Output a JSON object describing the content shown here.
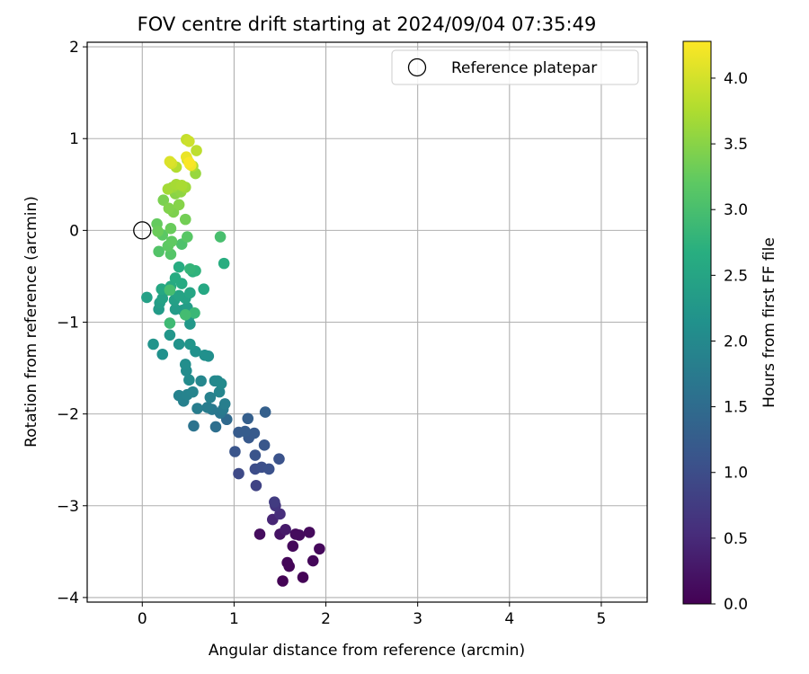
{
  "chart_data": {
    "type": "scatter",
    "title": "FOV centre drift starting at 2024/09/04 07:35:49",
    "xlabel": "Angular distance from reference (arcmin)",
    "ylabel": "Rotation from reference (arcmin)",
    "xlim": [
      -0.6,
      5.5
    ],
    "ylim": [
      -4.05,
      2.05
    ],
    "xticks": [
      0,
      1,
      2,
      3,
      4,
      5
    ],
    "yticks": [
      -4,
      -3,
      -2,
      -1,
      0,
      1,
      2
    ],
    "grid": true,
    "legend": {
      "position": "top-right",
      "entries": [
        "Reference platepar"
      ]
    },
    "reference_point": {
      "x": 0,
      "y": 0,
      "label": "Reference platepar"
    },
    "colorbar": {
      "label": "Hours from first FF file",
      "colormap": "viridis",
      "range": [
        0,
        4.28
      ],
      "ticks": [
        0.0,
        0.5,
        1.0,
        1.5,
        2.0,
        2.5,
        3.0,
        3.5,
        4.0
      ],
      "tick_labels": [
        "0.0",
        "0.5",
        "1.0",
        "1.5",
        "2.0",
        "2.5",
        "3.0",
        "3.5",
        "4.0"
      ]
    },
    "points": [
      {
        "x": 1.53,
        "y": -3.82,
        "c": 0.02
      },
      {
        "x": 1.75,
        "y": -3.78,
        "c": 0.03
      },
      {
        "x": 1.6,
        "y": -3.66,
        "c": 0.05
      },
      {
        "x": 1.58,
        "y": -3.62,
        "c": 0.06
      },
      {
        "x": 1.86,
        "y": -3.6,
        "c": 0.07
      },
      {
        "x": 1.64,
        "y": -3.44,
        "c": 0.08
      },
      {
        "x": 1.93,
        "y": -3.47,
        "c": 0.09
      },
      {
        "x": 1.82,
        "y": -3.29,
        "c": 0.11
      },
      {
        "x": 1.71,
        "y": -3.32,
        "c": 0.12
      },
      {
        "x": 1.67,
        "y": -3.31,
        "c": 0.13
      },
      {
        "x": 1.28,
        "y": -3.31,
        "c": 0.14
      },
      {
        "x": 1.5,
        "y": -3.31,
        "c": 0.22
      },
      {
        "x": 1.56,
        "y": -3.26,
        "c": 0.3
      },
      {
        "x": 1.42,
        "y": -3.15,
        "c": 0.45
      },
      {
        "x": 1.5,
        "y": -3.09,
        "c": 0.55
      },
      {
        "x": 1.45,
        "y": -3.0,
        "c": 0.65
      },
      {
        "x": 1.44,
        "y": -2.96,
        "c": 0.75
      },
      {
        "x": 1.24,
        "y": -2.78,
        "c": 0.85
      },
      {
        "x": 1.05,
        "y": -2.65,
        "c": 0.95
      },
      {
        "x": 1.23,
        "y": -2.6,
        "c": 1.0
      },
      {
        "x": 1.3,
        "y": -2.58,
        "c": 1.03
      },
      {
        "x": 1.38,
        "y": -2.6,
        "c": 1.06
      },
      {
        "x": 1.49,
        "y": -2.49,
        "c": 1.08
      },
      {
        "x": 1.23,
        "y": -2.45,
        "c": 1.1
      },
      {
        "x": 1.01,
        "y": -2.41,
        "c": 1.12
      },
      {
        "x": 1.33,
        "y": -2.34,
        "c": 1.15
      },
      {
        "x": 1.16,
        "y": -2.26,
        "c": 1.18
      },
      {
        "x": 1.22,
        "y": -2.21,
        "c": 1.2
      },
      {
        "x": 1.05,
        "y": -2.2,
        "c": 1.22
      },
      {
        "x": 1.12,
        "y": -2.19,
        "c": 1.24
      },
      {
        "x": 1.15,
        "y": -2.05,
        "c": 1.28
      },
      {
        "x": 1.34,
        "y": -1.98,
        "c": 1.3
      },
      {
        "x": 0.92,
        "y": -2.06,
        "c": 1.45
      },
      {
        "x": 0.8,
        "y": -2.14,
        "c": 1.55
      },
      {
        "x": 0.56,
        "y": -2.13,
        "c": 1.62
      },
      {
        "x": 0.85,
        "y": -1.99,
        "c": 1.68
      },
      {
        "x": 0.76,
        "y": -1.95,
        "c": 1.72
      },
      {
        "x": 0.88,
        "y": -1.95,
        "c": 1.75
      },
      {
        "x": 0.71,
        "y": -1.93,
        "c": 1.78
      },
      {
        "x": 0.6,
        "y": -1.94,
        "c": 1.8
      },
      {
        "x": 0.9,
        "y": -1.89,
        "c": 1.82
      },
      {
        "x": 0.45,
        "y": -1.86,
        "c": 1.84
      },
      {
        "x": 0.74,
        "y": -1.82,
        "c": 1.86
      },
      {
        "x": 0.4,
        "y": -1.8,
        "c": 1.88
      },
      {
        "x": 0.49,
        "y": -1.79,
        "c": 1.9
      },
      {
        "x": 0.55,
        "y": -1.76,
        "c": 1.92
      },
      {
        "x": 0.84,
        "y": -1.76,
        "c": 1.94
      },
      {
        "x": 0.64,
        "y": -1.64,
        "c": 1.96
      },
      {
        "x": 0.79,
        "y": -1.64,
        "c": 1.98
      },
      {
        "x": 0.82,
        "y": -1.64,
        "c": 2.0
      },
      {
        "x": 0.86,
        "y": -1.67,
        "c": 2.02
      },
      {
        "x": 0.51,
        "y": -1.63,
        "c": 2.04
      },
      {
        "x": 0.48,
        "y": -1.53,
        "c": 2.06
      },
      {
        "x": 0.47,
        "y": -1.46,
        "c": 2.08
      },
      {
        "x": 0.72,
        "y": -1.37,
        "c": 2.1
      },
      {
        "x": 0.68,
        "y": -1.36,
        "c": 2.12
      },
      {
        "x": 0.22,
        "y": -1.35,
        "c": 2.14
      },
      {
        "x": 0.58,
        "y": -1.32,
        "c": 2.16
      },
      {
        "x": 0.4,
        "y": -1.24,
        "c": 2.18
      },
      {
        "x": 0.12,
        "y": -1.24,
        "c": 2.2
      },
      {
        "x": 0.52,
        "y": -1.24,
        "c": 2.22
      },
      {
        "x": 0.3,
        "y": -1.14,
        "c": 2.24
      },
      {
        "x": 0.52,
        "y": -1.02,
        "c": 2.26
      },
      {
        "x": 0.51,
        "y": -0.94,
        "c": 2.28
      },
      {
        "x": 0.44,
        "y": -0.87,
        "c": 2.3
      },
      {
        "x": 0.18,
        "y": -0.86,
        "c": 2.32
      },
      {
        "x": 0.36,
        "y": -0.86,
        "c": 2.34
      },
      {
        "x": 0.49,
        "y": -0.84,
        "c": 2.36
      },
      {
        "x": 0.19,
        "y": -0.79,
        "c": 2.38
      },
      {
        "x": 0.35,
        "y": -0.76,
        "c": 2.4
      },
      {
        "x": 0.05,
        "y": -0.73,
        "c": 2.42
      },
      {
        "x": 0.22,
        "y": -0.74,
        "c": 2.44
      },
      {
        "x": 0.47,
        "y": -0.74,
        "c": 2.46
      },
      {
        "x": 0.4,
        "y": -0.71,
        "c": 2.48
      },
      {
        "x": 0.52,
        "y": -0.68,
        "c": 2.5
      },
      {
        "x": 0.29,
        "y": -0.65,
        "c": 2.52
      },
      {
        "x": 0.21,
        "y": -0.64,
        "c": 2.54
      },
      {
        "x": 0.67,
        "y": -0.64,
        "c": 2.56
      },
      {
        "x": 0.31,
        "y": -0.61,
        "c": 2.58
      },
      {
        "x": 0.43,
        "y": -0.58,
        "c": 2.6
      },
      {
        "x": 0.36,
        "y": -0.52,
        "c": 2.62
      },
      {
        "x": 0.4,
        "y": -0.4,
        "c": 2.64
      },
      {
        "x": 0.89,
        "y": -0.36,
        "c": 2.66
      },
      {
        "x": 0.55,
        "y": -0.45,
        "c": 2.7
      },
      {
        "x": 0.58,
        "y": -0.44,
        "c": 2.75
      },
      {
        "x": 0.52,
        "y": -0.42,
        "c": 2.8
      },
      {
        "x": 0.57,
        "y": -0.9,
        "c": 2.85
      },
      {
        "x": 0.3,
        "y": -1.01,
        "c": 2.9
      },
      {
        "x": 0.47,
        "y": -0.92,
        "c": 2.95
      },
      {
        "x": 0.3,
        "y": -0.65,
        "c": 2.98
      },
      {
        "x": 0.85,
        "y": -0.07,
        "c": 3.0
      },
      {
        "x": 0.43,
        "y": -0.15,
        "c": 3.05
      },
      {
        "x": 0.18,
        "y": -0.23,
        "c": 3.1
      },
      {
        "x": 0.31,
        "y": -0.26,
        "c": 3.12
      },
      {
        "x": 0.49,
        "y": -0.07,
        "c": 3.15
      },
      {
        "x": 0.22,
        "y": -0.05,
        "c": 3.18
      },
      {
        "x": 0.28,
        "y": -0.17,
        "c": 3.2
      },
      {
        "x": 0.32,
        "y": -0.12,
        "c": 3.22
      },
      {
        "x": 0.16,
        "y": 0.07,
        "c": 3.25
      },
      {
        "x": 0.31,
        "y": 0.02,
        "c": 3.28
      },
      {
        "x": 0.17,
        "y": -0.01,
        "c": 3.3
      },
      {
        "x": 0.47,
        "y": 0.12,
        "c": 3.35
      },
      {
        "x": 0.23,
        "y": 0.33,
        "c": 3.4
      },
      {
        "x": 0.34,
        "y": 0.2,
        "c": 3.42
      },
      {
        "x": 0.29,
        "y": 0.24,
        "c": 3.45
      },
      {
        "x": 0.4,
        "y": 0.28,
        "c": 3.48
      },
      {
        "x": 0.36,
        "y": 0.4,
        "c": 3.5
      },
      {
        "x": 0.42,
        "y": 0.42,
        "c": 3.55
      },
      {
        "x": 0.58,
        "y": 0.62,
        "c": 3.6
      },
      {
        "x": 0.33,
        "y": 0.47,
        "c": 3.62
      },
      {
        "x": 0.47,
        "y": 0.47,
        "c": 3.65
      },
      {
        "x": 0.28,
        "y": 0.45,
        "c": 3.68
      },
      {
        "x": 0.37,
        "y": 0.5,
        "c": 3.7
      },
      {
        "x": 0.43,
        "y": 0.49,
        "c": 3.72
      },
      {
        "x": 0.55,
        "y": 0.7,
        "c": 3.75
      },
      {
        "x": 0.37,
        "y": 0.69,
        "c": 3.78
      },
      {
        "x": 0.49,
        "y": 0.77,
        "c": 3.8
      },
      {
        "x": 0.59,
        "y": 0.87,
        "c": 3.85
      },
      {
        "x": 0.48,
        "y": 0.99,
        "c": 3.9
      },
      {
        "x": 0.51,
        "y": 0.97,
        "c": 3.95
      },
      {
        "x": 0.32,
        "y": 0.73,
        "c": 4.0
      },
      {
        "x": 0.3,
        "y": 0.75,
        "c": 4.05
      },
      {
        "x": 0.52,
        "y": 0.72,
        "c": 4.1
      },
      {
        "x": 0.48,
        "y": 0.8,
        "c": 4.15
      },
      {
        "x": 0.53,
        "y": 0.71,
        "c": 4.2
      },
      {
        "x": 0.51,
        "y": 0.74,
        "c": 4.25
      }
    ]
  }
}
